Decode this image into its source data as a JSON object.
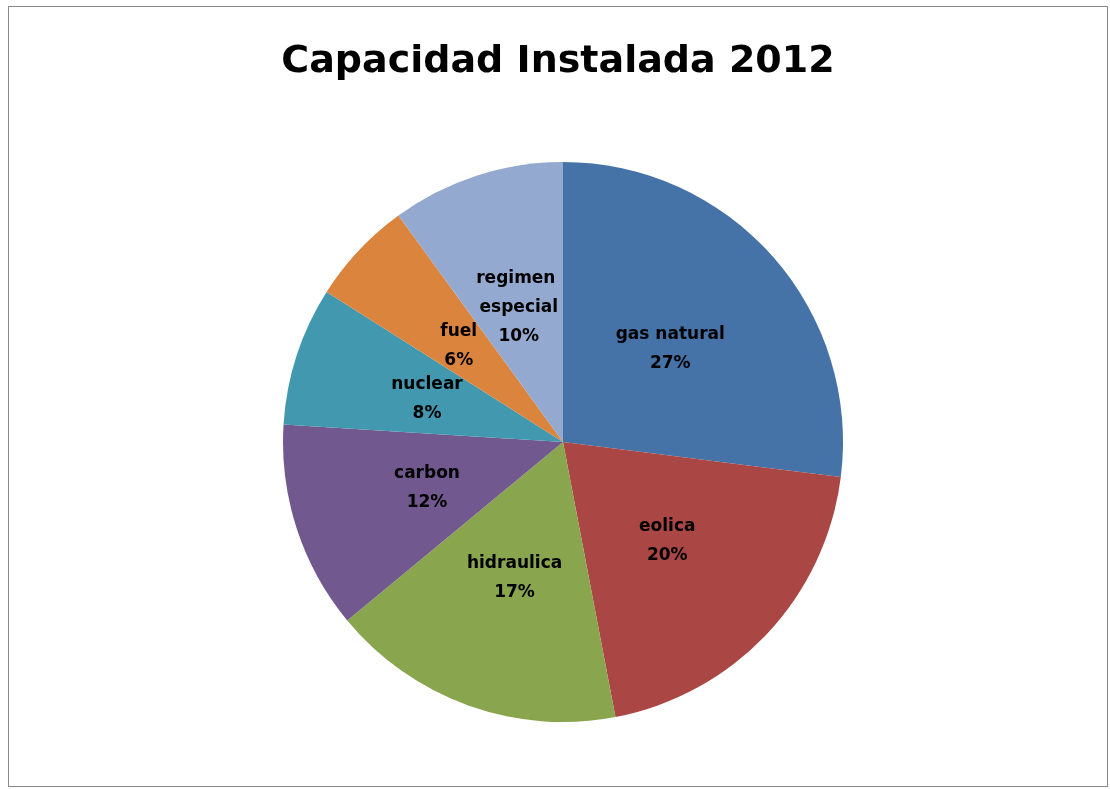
{
  "chart_data": {
    "type": "pie",
    "title": "Capacidad Instalada 2012",
    "categories": [
      "gas natural",
      "eolica",
      "hidraulica",
      "carbon",
      "nuclear",
      "fuel",
      "regimen especial"
    ],
    "values": [
      27,
      20,
      17,
      12,
      8,
      6,
      10
    ],
    "colors": [
      "#4572a7",
      "#aa4643",
      "#89a54e",
      "#71588f",
      "#4198af",
      "#db843d",
      "#93a9cf"
    ],
    "value_labels": [
      "27%",
      "20%",
      "17%",
      "12%",
      "8%",
      "6%",
      "10%"
    ],
    "legend": false
  }
}
